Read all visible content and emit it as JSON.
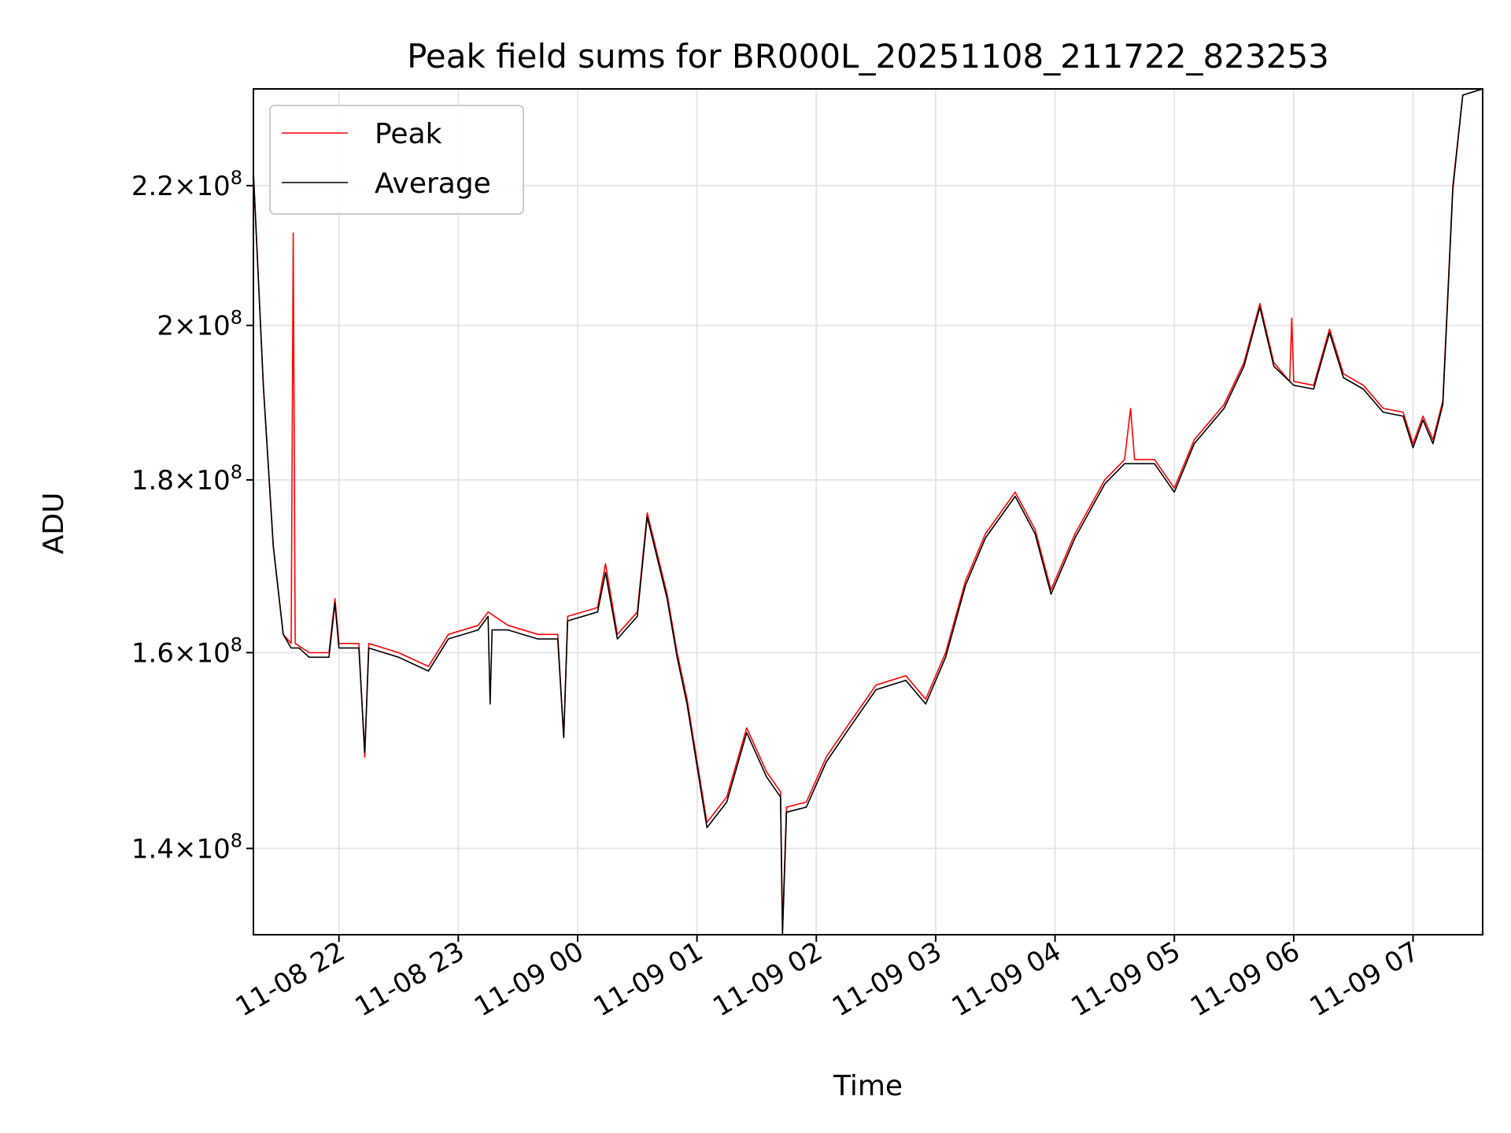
{
  "chart_data": {
    "type": "line",
    "title": "Peak field sums for BR000L_20251108_211722_823253",
    "xlabel": "Time",
    "ylabel": "ADU",
    "y_scale": "log",
    "ylim": [
      132000000.0,
      235000000.0
    ],
    "xlim": [
      "2025-11-08 21:17",
      "2025-11-09 07:35"
    ],
    "grid": true,
    "legend_position": "top-left",
    "x_ticks": [
      "11-08 22",
      "11-08 23",
      "11-09 00",
      "11-09 01",
      "11-09 02",
      "11-09 03",
      "11-09 04",
      "11-09 05",
      "11-09 06",
      "11-09 07"
    ],
    "y_ticks": [
      {
        "value": 140000000.0,
        "mantissa": "1.4",
        "exponent": "8"
      },
      {
        "value": 160000000.0,
        "mantissa": "1.6",
        "exponent": "8"
      },
      {
        "value": 180000000.0,
        "mantissa": "1.8",
        "exponent": "8"
      },
      {
        "value": 200000000.0,
        "mantissa": "2",
        "exponent": "8"
      },
      {
        "value": 220000000.0,
        "mantissa": "2.2",
        "exponent": "8"
      }
    ],
    "series": [
      {
        "name": "Peak",
        "color": "#ff0000",
        "points": [
          [
            "2025-11-08 21:17",
            222000000.0
          ],
          [
            "2025-11-08 21:22",
            192000000.0
          ],
          [
            "2025-11-08 21:27",
            172000000.0
          ],
          [
            "2025-11-08 21:32",
            162000000.0
          ],
          [
            "2025-11-08 21:36",
            161000000.0
          ],
          [
            "2025-11-08 21:37",
            213000000.0
          ],
          [
            "2025-11-08 21:38",
            161000000.0
          ],
          [
            "2025-11-08 21:45",
            160000000.0
          ],
          [
            "2025-11-08 21:55",
            160000000.0
          ],
          [
            "2025-11-08 21:58",
            166000000.0
          ],
          [
            "2025-11-08 22:00",
            161000000.0
          ],
          [
            "2025-11-08 22:10",
            161000000.0
          ],
          [
            "2025-11-08 22:13",
            149000000.0
          ],
          [
            "2025-11-08 22:15",
            161000000.0
          ],
          [
            "2025-11-08 22:30",
            160000000.0
          ],
          [
            "2025-11-08 22:45",
            158500000.0
          ],
          [
            "2025-11-08 22:55",
            162000000.0
          ],
          [
            "2025-11-08 23:10",
            163000000.0
          ],
          [
            "2025-11-08 23:15",
            164500000.0
          ],
          [
            "2025-11-08 23:25",
            163000000.0
          ],
          [
            "2025-11-08 23:40",
            162000000.0
          ],
          [
            "2025-11-08 23:50",
            162000000.0
          ],
          [
            "2025-11-08 23:53",
            151000000.0
          ],
          [
            "2025-11-08 23:55",
            164000000.0
          ],
          [
            "2025-11-09 00:10",
            165000000.0
          ],
          [
            "2025-11-09 00:14",
            170000000.0
          ],
          [
            "2025-11-09 00:20",
            162000000.0
          ],
          [
            "2025-11-09 00:30",
            164500000.0
          ],
          [
            "2025-11-09 00:35",
            176000000.0
          ],
          [
            "2025-11-09 00:45",
            166500000.0
          ],
          [
            "2025-11-09 00:50",
            160000000.0
          ],
          [
            "2025-11-09 00:55",
            155000000.0
          ],
          [
            "2025-11-09 01:05",
            142500000.0
          ],
          [
            "2025-11-09 01:15",
            145000000.0
          ],
          [
            "2025-11-09 01:25",
            152000000.0
          ],
          [
            "2025-11-09 01:35",
            147500000.0
          ],
          [
            "2025-11-09 01:42",
            145500000.0
          ],
          [
            "2025-11-09 01:43",
            132500000.0
          ],
          [
            "2025-11-09 01:45",
            144000000.0
          ],
          [
            "2025-11-09 01:55",
            144500000.0
          ],
          [
            "2025-11-09 02:05",
            149000000.0
          ],
          [
            "2025-11-09 02:15",
            152000000.0
          ],
          [
            "2025-11-09 02:30",
            156500000.0
          ],
          [
            "2025-11-09 02:45",
            157500000.0
          ],
          [
            "2025-11-09 02:55",
            155000000.0
          ],
          [
            "2025-11-09 03:05",
            160000000.0
          ],
          [
            "2025-11-09 03:15",
            168000000.0
          ],
          [
            "2025-11-09 03:25",
            173500000.0
          ],
          [
            "2025-11-09 03:40",
            178500000.0
          ],
          [
            "2025-11-09 03:50",
            174000000.0
          ],
          [
            "2025-11-09 03:58",
            167000000.0
          ],
          [
            "2025-11-09 04:10",
            173500000.0
          ],
          [
            "2025-11-09 04:25",
            180000000.0
          ],
          [
            "2025-11-09 04:35",
            182500000.0
          ],
          [
            "2025-11-09 04:38",
            189000000.0
          ],
          [
            "2025-11-09 04:40",
            182500000.0
          ],
          [
            "2025-11-09 04:50",
            182500000.0
          ],
          [
            "2025-11-09 05:00",
            179000000.0
          ],
          [
            "2025-11-09 05:10",
            185000000.0
          ],
          [
            "2025-11-09 05:25",
            189500000.0
          ],
          [
            "2025-11-09 05:35",
            195000000.0
          ],
          [
            "2025-11-09 05:43",
            203000000.0
          ],
          [
            "2025-11-09 05:50",
            195000000.0
          ],
          [
            "2025-11-09 05:58",
            192500000.0
          ],
          [
            "2025-11-09 05:59",
            201000000.0
          ],
          [
            "2025-11-09 06:00",
            192500000.0
          ],
          [
            "2025-11-09 06:10",
            192000000.0
          ],
          [
            "2025-11-09 06:18",
            199500000.0
          ],
          [
            "2025-11-09 06:25",
            193500000.0
          ],
          [
            "2025-11-09 06:35",
            192000000.0
          ],
          [
            "2025-11-09 06:45",
            189000000.0
          ],
          [
            "2025-11-09 06:55",
            188500000.0
          ],
          [
            "2025-11-09 07:00",
            184500000.0
          ],
          [
            "2025-11-09 07:05",
            188000000.0
          ],
          [
            "2025-11-09 07:10",
            185000000.0
          ],
          [
            "2025-11-09 07:15",
            190000000.0
          ],
          [
            "2025-11-09 07:20",
            220000000.0
          ],
          [
            "2025-11-09 07:25",
            234000000.0
          ],
          [
            "2025-11-09 07:35",
            235000000.0
          ]
        ]
      },
      {
        "name": "Average",
        "color": "#000000",
        "points": [
          [
            "2025-11-08 21:17",
            222000000.0
          ],
          [
            "2025-11-08 21:22",
            192000000.0
          ],
          [
            "2025-11-08 21:27",
            172000000.0
          ],
          [
            "2025-11-08 21:32",
            162000000.0
          ],
          [
            "2025-11-08 21:36",
            160500000.0
          ],
          [
            "2025-11-08 21:40",
            160500000.0
          ],
          [
            "2025-11-08 21:45",
            159500000.0
          ],
          [
            "2025-11-08 21:55",
            159500000.0
          ],
          [
            "2025-11-08 21:58",
            165500000.0
          ],
          [
            "2025-11-08 22:00",
            160500000.0
          ],
          [
            "2025-11-08 22:10",
            160500000.0
          ],
          [
            "2025-11-08 22:13",
            149500000.0
          ],
          [
            "2025-11-08 22:15",
            160500000.0
          ],
          [
            "2025-11-08 22:30",
            159500000.0
          ],
          [
            "2025-11-08 22:45",
            158000000.0
          ],
          [
            "2025-11-08 22:55",
            161500000.0
          ],
          [
            "2025-11-08 23:10",
            162500000.0
          ],
          [
            "2025-11-08 23:15",
            164000000.0
          ],
          [
            "2025-11-08 23:16",
            154500000.0
          ],
          [
            "2025-11-08 23:17",
            162500000.0
          ],
          [
            "2025-11-08 23:25",
            162500000.0
          ],
          [
            "2025-11-08 23:40",
            161500000.0
          ],
          [
            "2025-11-08 23:50",
            161500000.0
          ],
          [
            "2025-11-08 23:53",
            151000000.0
          ],
          [
            "2025-11-08 23:55",
            163500000.0
          ],
          [
            "2025-11-09 00:10",
            164500000.0
          ],
          [
            "2025-11-09 00:14",
            169000000.0
          ],
          [
            "2025-11-09 00:20",
            161500000.0
          ],
          [
            "2025-11-09 00:30",
            164000000.0
          ],
          [
            "2025-11-09 00:35",
            175500000.0
          ],
          [
            "2025-11-09 00:45",
            166000000.0
          ],
          [
            "2025-11-09 00:50",
            159500000.0
          ],
          [
            "2025-11-09 00:55",
            154500000.0
          ],
          [
            "2025-11-09 01:05",
            142000000.0
          ],
          [
            "2025-11-09 01:15",
            144500000.0
          ],
          [
            "2025-11-09 01:25",
            151500000.0
          ],
          [
            "2025-11-09 01:35",
            147000000.0
          ],
          [
            "2025-11-09 01:42",
            145000000.0
          ],
          [
            "2025-11-09 01:43",
            132000000.0
          ],
          [
            "2025-11-09 01:45",
            143500000.0
          ],
          [
            "2025-11-09 01:55",
            144000000.0
          ],
          [
            "2025-11-09 02:05",
            148500000.0
          ],
          [
            "2025-11-09 02:15",
            151500000.0
          ],
          [
            "2025-11-09 02:30",
            156000000.0
          ],
          [
            "2025-11-09 02:45",
            157000000.0
          ],
          [
            "2025-11-09 02:55",
            154500000.0
          ],
          [
            "2025-11-09 03:05",
            159500000.0
          ],
          [
            "2025-11-09 03:15",
            167500000.0
          ],
          [
            "2025-11-09 03:25",
            173000000.0
          ],
          [
            "2025-11-09 03:40",
            178000000.0
          ],
          [
            "2025-11-09 03:50",
            173500000.0
          ],
          [
            "2025-11-09 03:58",
            166500000.0
          ],
          [
            "2025-11-09 04:10",
            173000000.0
          ],
          [
            "2025-11-09 04:25",
            179500000.0
          ],
          [
            "2025-11-09 04:35",
            182000000.0
          ],
          [
            "2025-11-09 04:50",
            182000000.0
          ],
          [
            "2025-11-09 05:00",
            178500000.0
          ],
          [
            "2025-11-09 05:10",
            184500000.0
          ],
          [
            "2025-11-09 05:25",
            189000000.0
          ],
          [
            "2025-11-09 05:35",
            194500000.0
          ],
          [
            "2025-11-09 05:43",
            202500000.0
          ],
          [
            "2025-11-09 05:50",
            194500000.0
          ],
          [
            "2025-11-09 06:00",
            192000000.0
          ],
          [
            "2025-11-09 06:10",
            191500000.0
          ],
          [
            "2025-11-09 06:18",
            199000000.0
          ],
          [
            "2025-11-09 06:25",
            193000000.0
          ],
          [
            "2025-11-09 06:35",
            191500000.0
          ],
          [
            "2025-11-09 06:45",
            188500000.0
          ],
          [
            "2025-11-09 06:55",
            188000000.0
          ],
          [
            "2025-11-09 07:00",
            184000000.0
          ],
          [
            "2025-11-09 07:05",
            187500000.0
          ],
          [
            "2025-11-09 07:10",
            184500000.0
          ],
          [
            "2025-11-09 07:15",
            189500000.0
          ],
          [
            "2025-11-09 07:20",
            219500000.0
          ],
          [
            "2025-11-09 07:25",
            234000000.0
          ],
          [
            "2025-11-09 07:35",
            235000000.0
          ]
        ]
      }
    ]
  }
}
